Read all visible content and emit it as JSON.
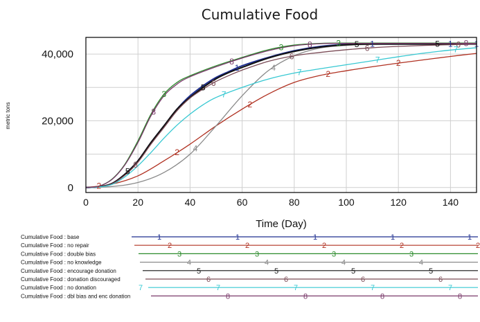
{
  "chart_data": {
    "type": "line",
    "title": "Cumulative Food",
    "xlabel": "Time (Day)",
    "ylabel": "metric tons",
    "xlim": [
      0,
      150
    ],
    "ylim": [
      -1500,
      45000
    ],
    "xticks": [
      0,
      20,
      40,
      60,
      80,
      100,
      120,
      140
    ],
    "yticks": [
      0,
      20000,
      40000
    ],
    "ytick_labels": [
      "0",
      "20,000",
      "40,000"
    ],
    "grid": true,
    "legend_position": "bottom",
    "series": [
      {
        "marker": "1",
        "name": "Cumulative Food : base",
        "color": "#1f2f8f",
        "x": [
          0,
          5,
          10,
          15,
          20,
          25,
          30,
          35,
          40,
          45,
          50,
          55,
          60,
          70,
          80,
          90,
          100,
          110,
          120,
          130,
          140,
          150
        ],
        "y": [
          0,
          200,
          1200,
          4000,
          8000,
          13500,
          18500,
          23500,
          27500,
          30500,
          33000,
          34800,
          36500,
          39000,
          41000,
          42300,
          42900,
          43000,
          43000,
          43000,
          43000,
          43000
        ],
        "marker_x": [
          58,
          110,
          140,
          150
        ]
      },
      {
        "marker": "2",
        "name": "Cumulative Food : no repair",
        "color": "#b03020",
        "x": [
          0,
          10,
          20,
          30,
          40,
          50,
          60,
          70,
          80,
          90,
          100,
          110,
          120,
          130,
          140,
          150
        ],
        "y": [
          0,
          1000,
          3500,
          8000,
          13000,
          18500,
          23500,
          28000,
          31500,
          33600,
          35000,
          36200,
          37300,
          38300,
          39300,
          40200
        ],
        "marker_x": [
          5,
          35,
          63,
          93,
          120
        ]
      },
      {
        "marker": "3",
        "name": "Cumulative Food : double bias",
        "color": "#2a8a2a",
        "x": [
          0,
          5,
          10,
          15,
          20,
          25,
          30,
          35,
          40,
          50,
          60,
          70,
          80,
          90,
          100,
          150
        ],
        "y": [
          0,
          400,
          2500,
          7000,
          14000,
          22000,
          28000,
          31500,
          33500,
          36500,
          39000,
          41300,
          42700,
          43200,
          43300,
          43300
        ],
        "marker_x": [
          30,
          75,
          97
        ]
      },
      {
        "marker": "4",
        "name": "Cumulative Food : no knowledge",
        "color": "#8a8a8a",
        "x": [
          0,
          10,
          20,
          30,
          40,
          50,
          60,
          70,
          80,
          90,
          100,
          110,
          120,
          150
        ],
        "y": [
          0,
          300,
          1500,
          4500,
          10000,
          18500,
          27500,
          35000,
          39500,
          41800,
          42600,
          42900,
          43000,
          43000
        ],
        "marker_x": [
          42,
          72
        ]
      },
      {
        "marker": "5",
        "name": "Cumulative Food : encourage donation",
        "color": "#111111",
        "x": [
          0,
          5,
          10,
          15,
          20,
          25,
          30,
          35,
          40,
          45,
          50,
          55,
          60,
          70,
          80,
          90,
          100,
          110,
          120,
          130,
          140,
          150
        ],
        "y": [
          0,
          200,
          1200,
          4000,
          8000,
          13500,
          18500,
          23500,
          27000,
          30000,
          32600,
          34500,
          36000,
          38800,
          40800,
          42100,
          42800,
          43000,
          43000,
          43000,
          43000,
          43000
        ],
        "marker_x": [
          16,
          45,
          104,
          135
        ]
      },
      {
        "marker": "6",
        "name": "Cumulative Food : donation discouraged",
        "color": "#7a4a55",
        "x": [
          0,
          5,
          10,
          15,
          20,
          25,
          30,
          35,
          40,
          45,
          50,
          55,
          60,
          70,
          80,
          90,
          100,
          110,
          120,
          130,
          140,
          150
        ],
        "y": [
          0,
          200,
          1100,
          3700,
          7600,
          13000,
          18000,
          23000,
          26800,
          29500,
          31800,
          33600,
          35200,
          37800,
          39500,
          40500,
          41300,
          41900,
          42300,
          42600,
          42800,
          43000
        ],
        "marker_x": [
          19,
          49,
          79,
          108,
          143
        ]
      },
      {
        "marker": "7",
        "name": "Cumulative Food : no donation",
        "color": "#36c8d2",
        "x": [
          0,
          5,
          10,
          15,
          20,
          25,
          30,
          35,
          40,
          45,
          50,
          60,
          70,
          80,
          90,
          100,
          110,
          120,
          130,
          140,
          150
        ],
        "y": [
          0,
          150,
          900,
          3200,
          6500,
          10500,
          14800,
          18700,
          22000,
          24800,
          27000,
          30000,
          32500,
          34300,
          35600,
          36800,
          38000,
          39200,
          40300,
          41200,
          41900
        ],
        "marker_x": [
          53,
          82,
          112,
          142
        ]
      },
      {
        "marker": "8",
        "name": "Cumulative Food : dbl bias and enc donation",
        "color": "#7a3a6a",
        "x": [
          0,
          5,
          10,
          15,
          20,
          25,
          30,
          35,
          40,
          50,
          60,
          70,
          80,
          90,
          100,
          150
        ],
        "y": [
          0,
          400,
          2400,
          6800,
          13500,
          21500,
          27500,
          31000,
          33200,
          36200,
          38800,
          41000,
          42500,
          43100,
          43200,
          43200
        ],
        "marker_x": [
          26,
          56,
          86,
          146
        ]
      }
    ]
  },
  "legend_markers": [
    {
      "marker": "1",
      "x": [
        230,
        343,
        455,
        567,
        678
      ]
    },
    {
      "marker": "2",
      "x": [
        245,
        357,
        468,
        580,
        690
      ]
    },
    {
      "marker": "3",
      "x": [
        259,
        371,
        482,
        594
      ]
    },
    {
      "marker": "4",
      "x": [
        273,
        385,
        496,
        608
      ]
    },
    {
      "marker": "5",
      "x": [
        287,
        399,
        510,
        622
      ]
    },
    {
      "marker": "6",
      "x": [
        301,
        413,
        524,
        636
      ]
    },
    {
      "marker": "7",
      "x": [
        203,
        315,
        427,
        538,
        650
      ]
    },
    {
      "marker": "8",
      "x": [
        329,
        441,
        552,
        664
      ]
    }
  ]
}
